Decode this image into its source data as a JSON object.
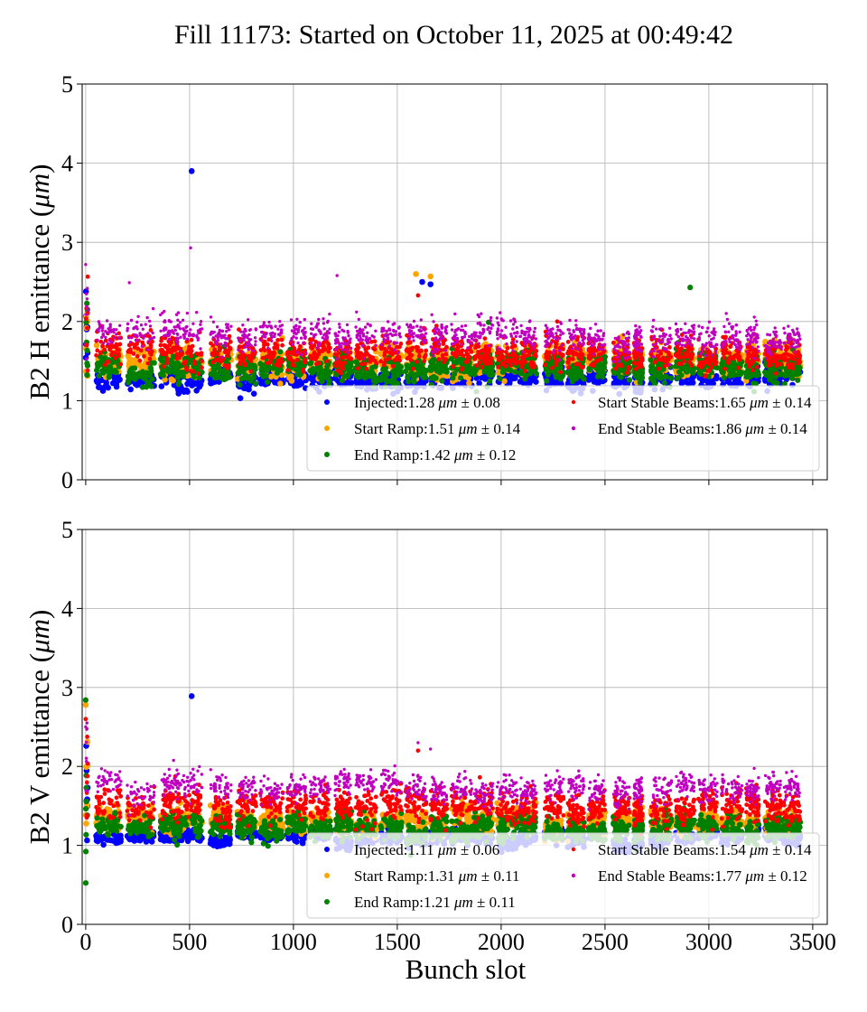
{
  "title": "Fill 11173: Started on October 11, 2025 at 00:49:42",
  "chart_data": [
    {
      "type": "scatter",
      "ylabel_prefix": "B2 H emittance (",
      "ylabel_unit": "μm",
      "ylabel_suffix": ")",
      "xlabel": "",
      "xlim": [
        -17,
        3570
      ],
      "ylim": [
        0,
        5
      ],
      "xticks": [
        0,
        500,
        1000,
        1500,
        2000,
        2500,
        3000,
        3500
      ],
      "xtick_labels_shown": false,
      "yticks": [
        0,
        1,
        2,
        3,
        4,
        5
      ],
      "grid": true,
      "legend_placement": "lower-right",
      "series": [
        {
          "name": "Injected",
          "mean": 1.28,
          "std": 0.08,
          "color": "#0000ff",
          "legend": "Injected:1.28",
          "unit": "μm",
          "pm": "± 0.08",
          "outliers": [
            [
              510,
              3.9
            ],
            [
              1620,
              2.5
            ],
            [
              1660,
              2.47
            ]
          ]
        },
        {
          "name": "Start Ramp",
          "mean": 1.51,
          "std": 0.14,
          "color": "#ffa500",
          "legend": "Start Ramp:1.51",
          "unit": "μm",
          "pm": "± 0.14",
          "outliers": [
            [
              1590,
              2.6
            ],
            [
              1660,
              2.57
            ],
            [
              3180,
              1.25
            ]
          ]
        },
        {
          "name": "End Ramp",
          "mean": 1.42,
          "std": 0.12,
          "color": "#008000",
          "legend": "End Ramp:1.42",
          "unit": "μm",
          "pm": "± 0.12",
          "outliers": [
            [
              2910,
              2.43
            ],
            [
              1940,
              1.99
            ]
          ]
        },
        {
          "name": "Start Stable Beams",
          "mean": 1.65,
          "std": 0.14,
          "color": "#ff0000",
          "legend": "Start Stable Beams:1.65",
          "unit": "μm",
          "pm": "± 0.14",
          "outliers": [
            [
              1600,
              2.33
            ],
            [
              2270,
              2.0
            ]
          ]
        },
        {
          "name": "End Stable Beams",
          "mean": 1.86,
          "std": 0.14,
          "color": "#bf00bf",
          "legend": "End Stable Beams:1.86",
          "unit": "μm",
          "pm": "± 0.14",
          "outliers": [
            [
              505,
              2.93
            ],
            [
              210,
              2.49
            ],
            [
              1210,
              2.58
            ],
            [
              0,
              2.72
            ]
          ]
        }
      ]
    },
    {
      "type": "scatter",
      "ylabel_prefix": "B2 V emittance (",
      "ylabel_unit": "μm",
      "ylabel_suffix": ")",
      "xlabel": "Bunch slot",
      "xlim": [
        -17,
        3570
      ],
      "ylim": [
        0,
        5
      ],
      "xticks": [
        0,
        500,
        1000,
        1500,
        2000,
        2500,
        3000,
        3500
      ],
      "xtick_labels_shown": true,
      "yticks": [
        0,
        1,
        2,
        3,
        4,
        5
      ],
      "grid": true,
      "legend_placement": "lower-right",
      "series": [
        {
          "name": "Injected",
          "mean": 1.11,
          "std": 0.06,
          "color": "#0000ff",
          "legend": "Injected:1.11",
          "unit": "μm",
          "pm": "± 0.06",
          "outliers": [
            [
              510,
              2.89
            ]
          ]
        },
        {
          "name": "Start Ramp",
          "mean": 1.31,
          "std": 0.11,
          "color": "#ffa500",
          "legend": "Start Ramp:1.31",
          "unit": "μm",
          "pm": "± 0.11",
          "outliers": [
            [
              0,
              2.78
            ]
          ]
        },
        {
          "name": "End Ramp",
          "mean": 1.21,
          "std": 0.11,
          "color": "#008000",
          "legend": "End Ramp:1.21",
          "unit": "μm",
          "pm": "± 0.11",
          "outliers": [
            [
              0,
              2.84
            ]
          ]
        },
        {
          "name": "Start Stable Beams",
          "mean": 1.54,
          "std": 0.14,
          "color": "#ff0000",
          "legend": "Start Stable Beams:1.54",
          "unit": "μm",
          "pm": "± 0.14",
          "outliers": [
            [
              1600,
              2.2
            ],
            [
              0,
              2.6
            ]
          ]
        },
        {
          "name": "End Stable Beams",
          "mean": 1.77,
          "std": 0.12,
          "color": "#bf00bf",
          "legend": "End Stable Beams:1.77",
          "unit": "μm",
          "pm": "± 0.12",
          "outliers": [
            [
              1600,
              2.3
            ],
            [
              1660,
              2.22
            ],
            [
              0,
              2.5
            ]
          ]
        }
      ]
    }
  ],
  "bunch_trains": [
    [
      0,
      10
    ],
    [
      50,
      170
    ],
    [
      200,
      330
    ],
    [
      360,
      450
    ],
    [
      440,
      560
    ],
    [
      600,
      700
    ],
    [
      730,
      820
    ],
    [
      840,
      950
    ],
    [
      970,
      1060
    ],
    [
      1080,
      1180
    ],
    [
      1200,
      1280
    ],
    [
      1300,
      1400
    ],
    [
      1420,
      1520
    ],
    [
      1540,
      1640
    ],
    [
      1660,
      1740
    ],
    [
      1760,
      1860
    ],
    [
      1870,
      1960
    ],
    [
      1980,
      2080
    ],
    [
      2090,
      2170
    ],
    [
      2210,
      2300
    ],
    [
      2320,
      2400
    ],
    [
      2420,
      2500
    ],
    [
      2540,
      2620
    ],
    [
      2640,
      2680
    ],
    [
      2720,
      2820
    ],
    [
      2840,
      2930
    ],
    [
      2950,
      3040
    ],
    [
      3060,
      3160
    ],
    [
      3180,
      3240
    ],
    [
      3270,
      3350
    ],
    [
      3360,
      3440
    ]
  ]
}
